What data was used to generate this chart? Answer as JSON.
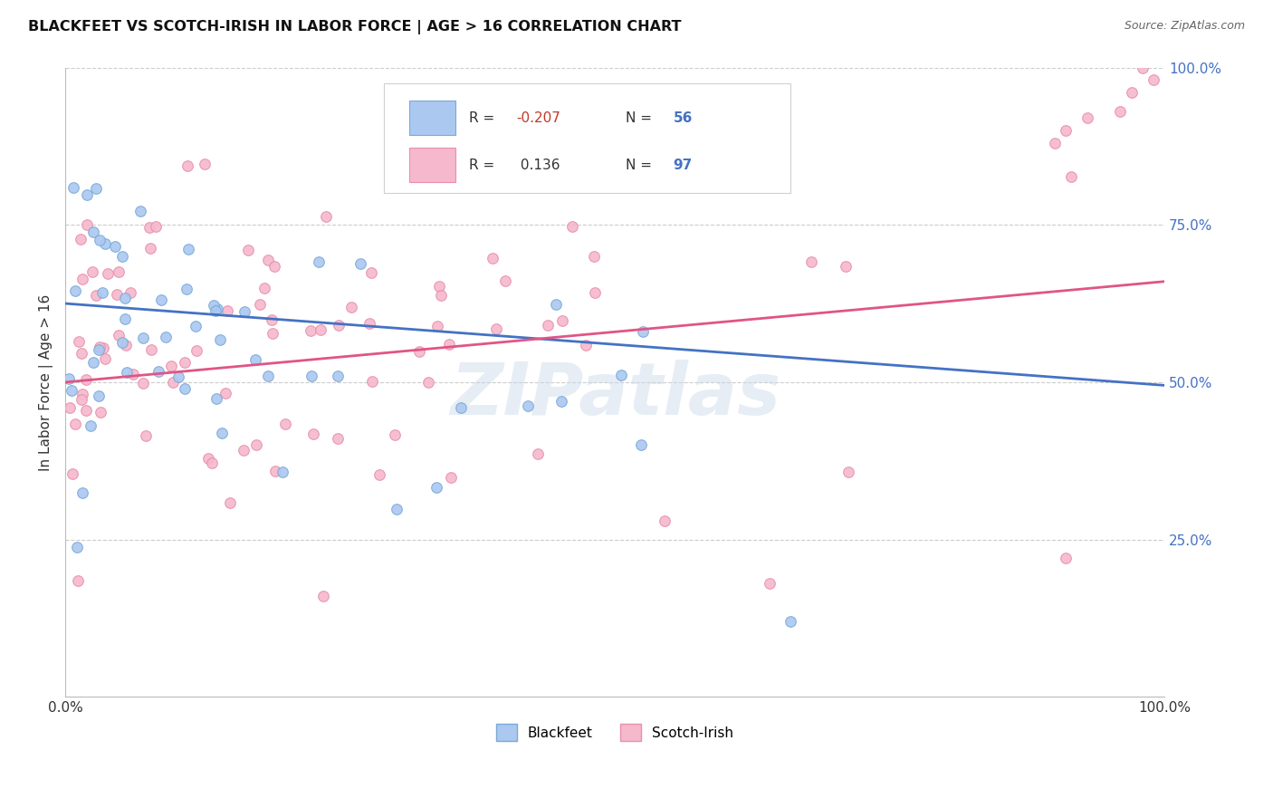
{
  "title": "BLACKFEET VS SCOTCH-IRISH IN LABOR FORCE | AGE > 16 CORRELATION CHART",
  "source": "Source: ZipAtlas.com",
  "ylabel": "In Labor Force | Age > 16",
  "xlim": [
    0,
    1
  ],
  "ylim": [
    0,
    1
  ],
  "xtick_labels": [
    "0.0%",
    "100.0%"
  ],
  "ytick_labels_right": [
    "100.0%",
    "75.0%",
    "50.0%",
    "25.0%"
  ],
  "ytick_positions_right": [
    1.0,
    0.75,
    0.5,
    0.25
  ],
  "grid_color": "#cccccc",
  "background_color": "#ffffff",
  "blackfeet_color": "#aac8f0",
  "scotch_color": "#f5b8cc",
  "blackfeet_edge": "#7aaad8",
  "scotch_edge": "#e890aa",
  "R_blackfeet": -0.207,
  "N_blackfeet": 56,
  "R_scotch": 0.136,
  "N_scotch": 97,
  "line_blue": "#4472c4",
  "line_pink": "#e05585",
  "marker_size": 70,
  "watermark_text": "ZIPatlas",
  "watermark_color": "#c8d8ea",
  "watermark_alpha": 0.45,
  "annot_box_color": "#f0f0f0",
  "annot_text_color": "#333333",
  "annot_N_color": "#4472c4",
  "annot_R_neg_color": "#c0392b",
  "annot_R_pos_color": "#333333"
}
